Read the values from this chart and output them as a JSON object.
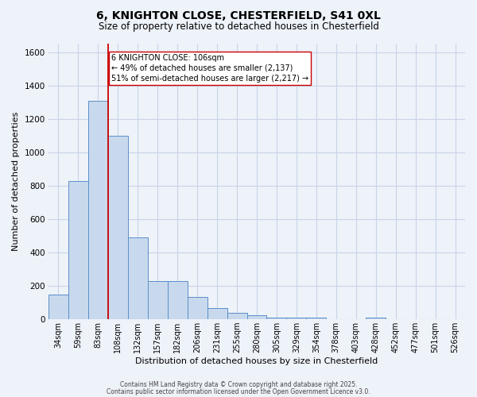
{
  "title_line1": "6, KNIGHTON CLOSE, CHESTERFIELD, S41 0XL",
  "title_line2": "Size of property relative to detached houses in Chesterfield",
  "xlabel": "Distribution of detached houses by size in Chesterfield",
  "ylabel": "Number of detached properties",
  "categories": [
    "34sqm",
    "59sqm",
    "83sqm",
    "108sqm",
    "132sqm",
    "157sqm",
    "182sqm",
    "206sqm",
    "231sqm",
    "255sqm",
    "280sqm",
    "305sqm",
    "329sqm",
    "354sqm",
    "378sqm",
    "403sqm",
    "428sqm",
    "452sqm",
    "477sqm",
    "501sqm",
    "526sqm"
  ],
  "values": [
    150,
    830,
    1310,
    1100,
    490,
    230,
    230,
    135,
    65,
    40,
    25,
    10,
    10,
    10,
    0,
    0,
    10,
    0,
    0,
    0,
    0
  ],
  "bar_color": "#c8d9ed",
  "bar_edge_color": "#5b8fc9",
  "red_line_color": "#cc0000",
  "annotation_text": "6 KNIGHTON CLOSE: 106sqm\n← 49% of detached houses are smaller (2,137)\n51% of semi-detached houses are larger (2,217) →",
  "annotation_box_color": "#ffffff",
  "annotation_box_edge_color": "#cc0000",
  "ylim": [
    0,
    1650
  ],
  "yticks": [
    0,
    200,
    400,
    600,
    800,
    1000,
    1200,
    1400,
    1600
  ],
  "grid_color": "#c8d4e8",
  "background_color": "#eef2f9",
  "footer_line1": "Contains HM Land Registry data © Crown copyright and database right 2025.",
  "footer_line2": "Contains public sector information licensed under the Open Government Licence v3.0."
}
